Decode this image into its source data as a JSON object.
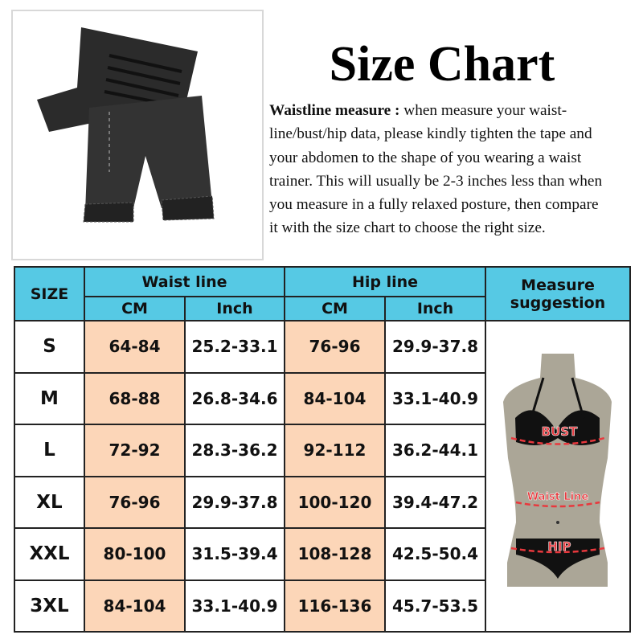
{
  "title": "Size Chart",
  "description": {
    "label": "Waistline measure :",
    "text": " when measure your waist-line/bust/hip data, please kindly tighten the tape and your abdomen to the shape of you wearing a waist trainer. This will usually be 2-3 inches less than when you measure in a fully relaxed posture, then compare it with the size chart to choose the right size."
  },
  "table": {
    "size_header": "SIZE",
    "waist_header": "Waist line",
    "hip_header": "Hip line",
    "measure_header": "Measure suggestion",
    "cm": "CM",
    "inch": "Inch",
    "rows": [
      {
        "size": "S",
        "waist_cm": "64-84",
        "waist_in": "25.2-33.1",
        "hip_cm": "76-96",
        "hip_in": "29.9-37.8"
      },
      {
        "size": "M",
        "waist_cm": "68-88",
        "waist_in": "26.8-34.6",
        "hip_cm": "84-104",
        "hip_in": "33.1-40.9"
      },
      {
        "size": "L",
        "waist_cm": "72-92",
        "waist_in": "28.3-36.2",
        "hip_cm": "92-112",
        "hip_in": "36.2-44.1"
      },
      {
        "size": "XL",
        "waist_cm": "76-96",
        "waist_in": "29.9-37.8",
        "hip_cm": "100-120",
        "hip_in": "39.4-47.2"
      },
      {
        "size": "XXL",
        "waist_cm": "80-100",
        "waist_in": "31.5-39.4",
        "hip_cm": "108-128",
        "hip_in": "42.5-50.4"
      },
      {
        "size": "3XL",
        "waist_cm": "84-104",
        "waist_in": "33.1-40.9",
        "hip_cm": "116-136",
        "hip_in": "45.7-53.5"
      }
    ]
  },
  "figure": {
    "bust": "BUST",
    "waist": "Waist Line",
    "hip": "HIP"
  },
  "colors": {
    "header": "#56c9e4",
    "highlight": "#fcd6b8",
    "label": "#e8383d"
  }
}
